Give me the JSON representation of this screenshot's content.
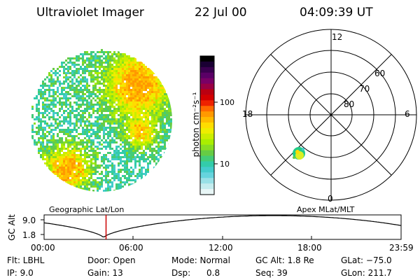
{
  "header": {
    "instrument": "Ultraviolet Imager",
    "date": "22 Jul 00",
    "time": "04:09:39 UT"
  },
  "colorbar": {
    "unit_label": "photon cm⁻²s⁻¹",
    "tick_labels": [
      "100",
      "10"
    ],
    "colors": [
      "#000000",
      "#1a0033",
      "#3a004f",
      "#5a0066",
      "#7a0066",
      "#990044",
      "#bb0011",
      "#d40000",
      "#ee2200",
      "#ff6a00",
      "#ff9900",
      "#ffbb00",
      "#ffdd00",
      "#eeee00",
      "#ccee00",
      "#aaee00",
      "#88dd22",
      "#66cc44",
      "#44cc77",
      "#33ccaa",
      "#44cccc",
      "#66d4dd",
      "#99e0e6",
      "#c4ecee",
      "#e8f6f6"
    ]
  },
  "polar_plot": {
    "mlt_labels": [
      "12",
      "18",
      "6",
      "0"
    ],
    "mlat_labels": [
      "60",
      "70",
      "80"
    ]
  },
  "labels": {
    "left_projection": "Geographic Lat/Lon",
    "right_projection": "Apex MLat/MLT"
  },
  "altitude_plot": {
    "ylabel": "GC Alt",
    "y_ticks": [
      "9.0",
      "1.8"
    ],
    "x_ticks": [
      "00:00",
      "06:00",
      "12:00",
      "18:00",
      "23:59"
    ],
    "marker_time": "04:09:39",
    "curve_color": "#000000",
    "marker_color": "#cc0000"
  },
  "info": {
    "filter": "Flt: LBHL",
    "ip": "IP:  9.0",
    "door": "Door: Open",
    "gain": "Gain: 13",
    "mode": "Mode: Normal",
    "dsp": "Dsp:      0.8",
    "gc_alt": "GC Alt: 1.8 Re",
    "seq": "Seq: 39",
    "glat": "GLat: −75.0",
    "glon": "GLon: 211.7"
  }
}
